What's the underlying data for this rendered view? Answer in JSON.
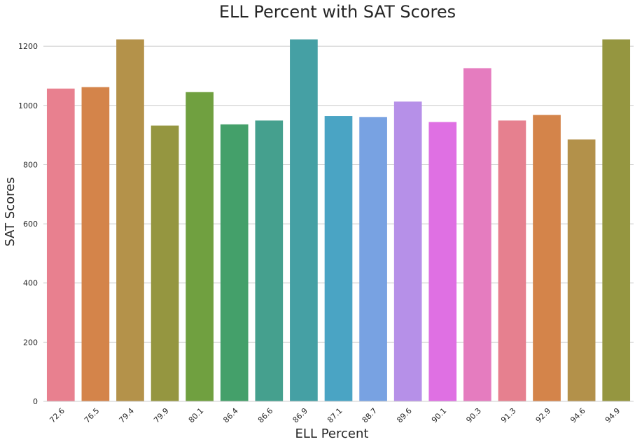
{
  "chart_data": {
    "type": "bar",
    "title": "ELL Percent with SAT Scores",
    "xlabel": "ELL Percent",
    "ylabel": "SAT Scores",
    "categories": [
      "72.6",
      "76.5",
      "79.4",
      "79.9",
      "80.1",
      "86.4",
      "86.6",
      "86.9",
      "87.1",
      "88.7",
      "89.6",
      "90.1",
      "90.3",
      "91.3",
      "92.9",
      "94.6",
      "94.9"
    ],
    "values": [
      1057,
      1062,
      1223,
      932,
      1045,
      936,
      949,
      1223,
      964,
      961,
      1013,
      944,
      1126,
      949,
      968,
      885,
      1223
    ],
    "colors": [
      "#e8808f",
      "#d4844a",
      "#b4924a",
      "#959640",
      "#70a040",
      "#44a06a",
      "#45a08e",
      "#45a0a4",
      "#4aa4c4",
      "#78a2e2",
      "#b690e8",
      "#df70e3",
      "#e57cbf",
      "#e6808f",
      "#d4844a",
      "#b3914a",
      "#959640"
    ],
    "yticks": [
      0,
      200,
      400,
      600,
      800,
      1000,
      1200
    ],
    "ylim": [
      0,
      1250
    ],
    "grid": true
  }
}
